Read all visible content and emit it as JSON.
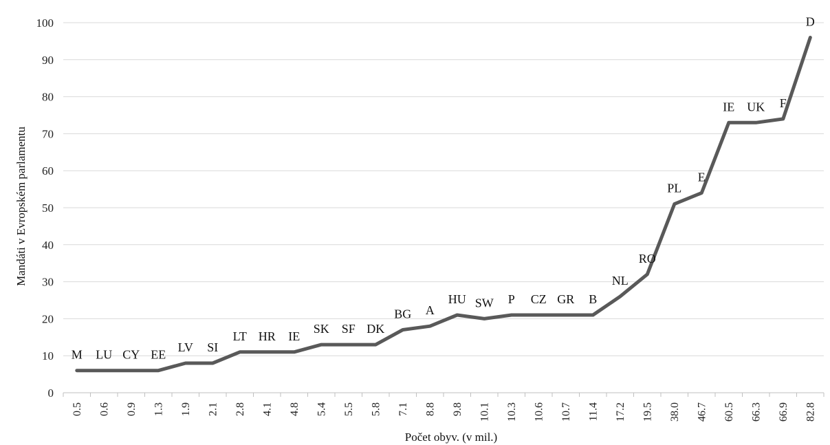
{
  "chart_data": {
    "type": "line",
    "title": "",
    "xlabel": "Počet obyv. (v mil.)",
    "ylabel": "Mandáti v Evropském parlamentu",
    "ylim": [
      0,
      100
    ],
    "yticks": [
      "0",
      "10",
      "20",
      "30",
      "40",
      "50",
      "60",
      "70",
      "80",
      "90",
      "100"
    ],
    "grid": true,
    "line_color": "#595959",
    "categories": [
      "0.5",
      "0.6",
      "0.9",
      "1.3",
      "1.9",
      "2.1",
      "2.8",
      "4.1",
      "4.8",
      "5.4",
      "5.5",
      "5.8",
      "7.1",
      "8.8",
      "9.8",
      "10.1",
      "10.3",
      "10.6",
      "10.7",
      "11.4",
      "17.2",
      "19.5",
      "38.0",
      "46.7",
      "60.5",
      "66.3",
      "66.9",
      "82.8"
    ],
    "point_labels": [
      "M",
      "LU",
      "CY",
      "EE",
      "LV",
      "SI",
      "LT",
      "HR",
      "IE",
      "SK",
      "SF",
      "DK",
      "BG",
      "A",
      "HU",
      "SW",
      "P",
      "CZ",
      "GR",
      "B",
      "NL",
      "RO",
      "PL",
      "E",
      "IE",
      "UK",
      "F",
      "D"
    ],
    "values": [
      6,
      6,
      6,
      6,
      8,
      8,
      11,
      11,
      11,
      13,
      13,
      13,
      17,
      18,
      21,
      20,
      21,
      21,
      21,
      21,
      26,
      32,
      51,
      54,
      73,
      73,
      74,
      96
    ]
  }
}
